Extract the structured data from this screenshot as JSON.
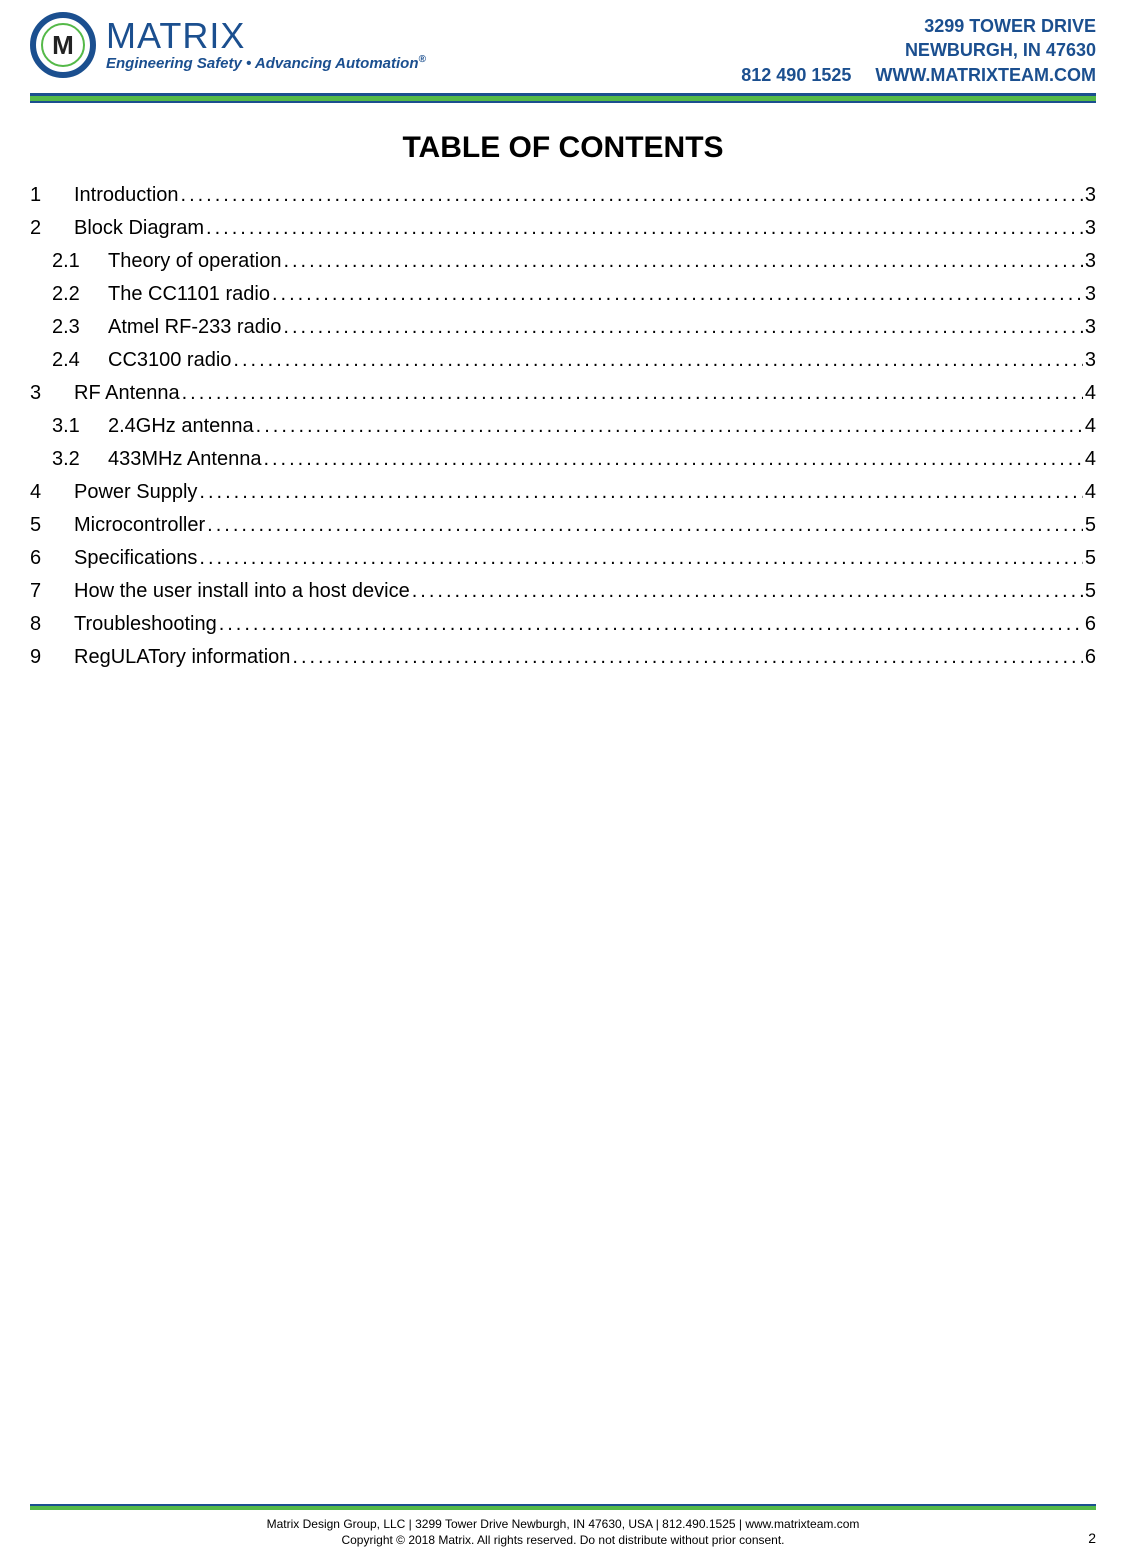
{
  "brand": {
    "mark_letter": "M",
    "name": "MATRIX",
    "tagline": "Engineering Safety • Advancing Automation",
    "tagline_sup": "®",
    "colors": {
      "blue": "#1b4f8f",
      "green": "#54b948"
    }
  },
  "header_contact": {
    "line1": "3299 TOWER DRIVE",
    "line2": "NEWBURGH, IN 47630",
    "phone": "812 490 1525",
    "website": "WWW.MATRIXTEAM.COM"
  },
  "toc": {
    "title": "TABLE OF CONTENTS",
    "entries": [
      {
        "num": "1",
        "label": "Introduction",
        "page": "3",
        "level": 0
      },
      {
        "num": "2",
        "label": "Block Diagram",
        "page": "3",
        "level": 0
      },
      {
        "num": "2.1",
        "label": "Theory of operation",
        "page": "3",
        "level": 1
      },
      {
        "num": "2.2",
        "label": "The CC1101 radio",
        "page": "3",
        "level": 1
      },
      {
        "num": "2.3",
        "label": "Atmel RF-233 radio",
        "page": "3",
        "level": 1
      },
      {
        "num": "2.4",
        "label": "CC3100 radio",
        "page": "3",
        "level": 1
      },
      {
        "num": "3",
        "label": "RF Antenna",
        "page": "4",
        "level": 0
      },
      {
        "num": "3.1",
        "label": "2.4GHz antenna",
        "page": "4",
        "level": 1
      },
      {
        "num": "3.2",
        "label": "433MHz Antenna",
        "page": "4",
        "level": 1
      },
      {
        "num": "4",
        "label": "Power Supply",
        "page": "4",
        "level": 0
      },
      {
        "num": "5",
        "label": "Microcontroller",
        "page": "5",
        "level": 0
      },
      {
        "num": "6",
        "label": "Specifications",
        "page": "5",
        "level": 0
      },
      {
        "num": "7",
        "label": "How the user install into a host device",
        "page": "5",
        "level": 0
      },
      {
        "num": "8",
        "label": "Troubleshooting",
        "page": "6",
        "level": 0
      },
      {
        "num": "9",
        "label": "RegULATory information",
        "page": "6",
        "level": 0
      }
    ]
  },
  "footer": {
    "line1": "Matrix Design Group, LLC | 3299 Tower Drive Newburgh, IN 47630, USA | 812.490.1525 | www.matrixteam.com",
    "line2": "Copyright © 2018 Matrix. All rights reserved. Do not distribute without prior consent.",
    "page_number": "2"
  }
}
